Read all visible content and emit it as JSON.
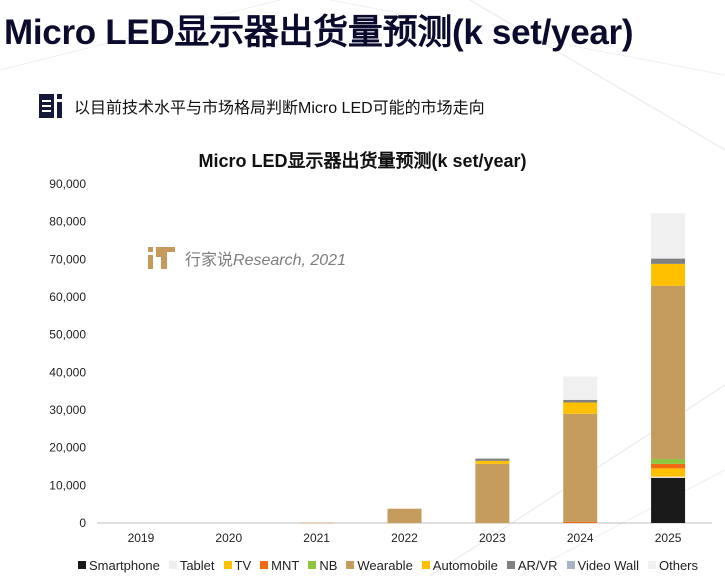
{
  "page": {
    "title": "Micro LED显示器出货量预测(k set/year)",
    "subtitle": "以目前技术水平与市场格局判断Micro LED可能的市场走向"
  },
  "watermark": {
    "brand": "行家说",
    "source": "Research, 2021"
  },
  "colors": {
    "title": "#0b0b2e",
    "deco_line": "#e9e9ee",
    "logo_gold": "#c59a5c"
  },
  "icons": {
    "subtitle": "document-icon",
    "watermark": "xjs-logo-icon"
  },
  "chart_data": {
    "type": "bar",
    "stacked": true,
    "title": "Micro LED显示器出货量预测(k set/year)",
    "xlabel": "",
    "ylabel": "",
    "ylim": [
      0,
      90000
    ],
    "yticks": [
      0,
      10000,
      20000,
      30000,
      40000,
      50000,
      60000,
      70000,
      80000,
      90000
    ],
    "ytick_labels": [
      "0",
      "10,000",
      "20,000",
      "30,000",
      "40,000",
      "50,000",
      "60,000",
      "70,000",
      "80,000",
      "90,000"
    ],
    "grid": false,
    "legend_position": "bottom",
    "categories": [
      "2019",
      "2020",
      "2021",
      "2022",
      "2023",
      "2024",
      "2025"
    ],
    "series": [
      {
        "name": "Smartphone",
        "color": "#1a1a1a",
        "values": [
          0,
          0,
          0,
          0,
          0,
          0,
          12000
        ]
      },
      {
        "name": "Tablet",
        "color": "#eeeeee",
        "values": [
          0,
          0,
          0,
          0,
          0,
          0,
          300
        ]
      },
      {
        "name": "TV",
        "color": "#ffc000",
        "values": [
          0,
          0,
          0,
          0,
          0,
          0,
          2200
        ]
      },
      {
        "name": "MNT",
        "color": "#f26b10",
        "values": [
          0,
          0,
          0,
          0,
          0,
          300,
          1200
        ]
      },
      {
        "name": "NB",
        "color": "#8dc63f",
        "values": [
          0,
          0,
          0,
          0,
          0,
          0,
          1300
        ]
      },
      {
        "name": "Wearable",
        "color": "#c69c5e",
        "values": [
          0,
          0,
          100,
          3800,
          15700,
          28700,
          46000
        ]
      },
      {
        "name": "Automobile",
        "color": "#ffc000",
        "values": [
          0,
          0,
          0,
          0,
          800,
          3000,
          5800
        ]
      },
      {
        "name": "AR/VR",
        "color": "#808080",
        "values": [
          0,
          0,
          0,
          0,
          600,
          700,
          1400
        ]
      },
      {
        "name": "Video Wall",
        "color": "#a8b3c4",
        "values": [
          0,
          0,
          0,
          0,
          0,
          0,
          0
        ]
      },
      {
        "name": "Others",
        "color": "#f0f0f0",
        "values": [
          0,
          0,
          0,
          0,
          0,
          6200,
          12000
        ]
      }
    ]
  }
}
